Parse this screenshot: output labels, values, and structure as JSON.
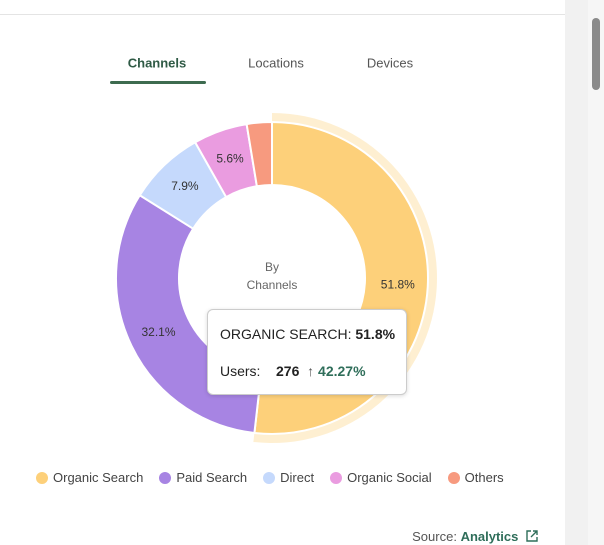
{
  "tabs": [
    "Channels",
    "Locations",
    "Devices"
  ],
  "chart_data": {
    "type": "donut",
    "center_label": [
      "By",
      "Channels"
    ],
    "categories": [
      "Organic Search",
      "Paid Search",
      "Direct",
      "Organic Social",
      "Others"
    ],
    "values": [
      51.8,
      32.1,
      7.9,
      5.6,
      2.6
    ],
    "value_labels": [
      "51.8%",
      "32.1%",
      "7.9%",
      "5.6%",
      null
    ],
    "colors": [
      "#fdd07a",
      "#a784e3",
      "#c5d9fc",
      "#ea9ce0",
      "#f79a7f"
    ],
    "highlight": 0
  },
  "tooltip": {
    "label": "ORGANIC SEARCH:",
    "value": "51.8%",
    "users_label": "Users:",
    "users": "276",
    "change": "42.27%"
  },
  "source": {
    "label": "Source:",
    "link": "Analytics"
  }
}
